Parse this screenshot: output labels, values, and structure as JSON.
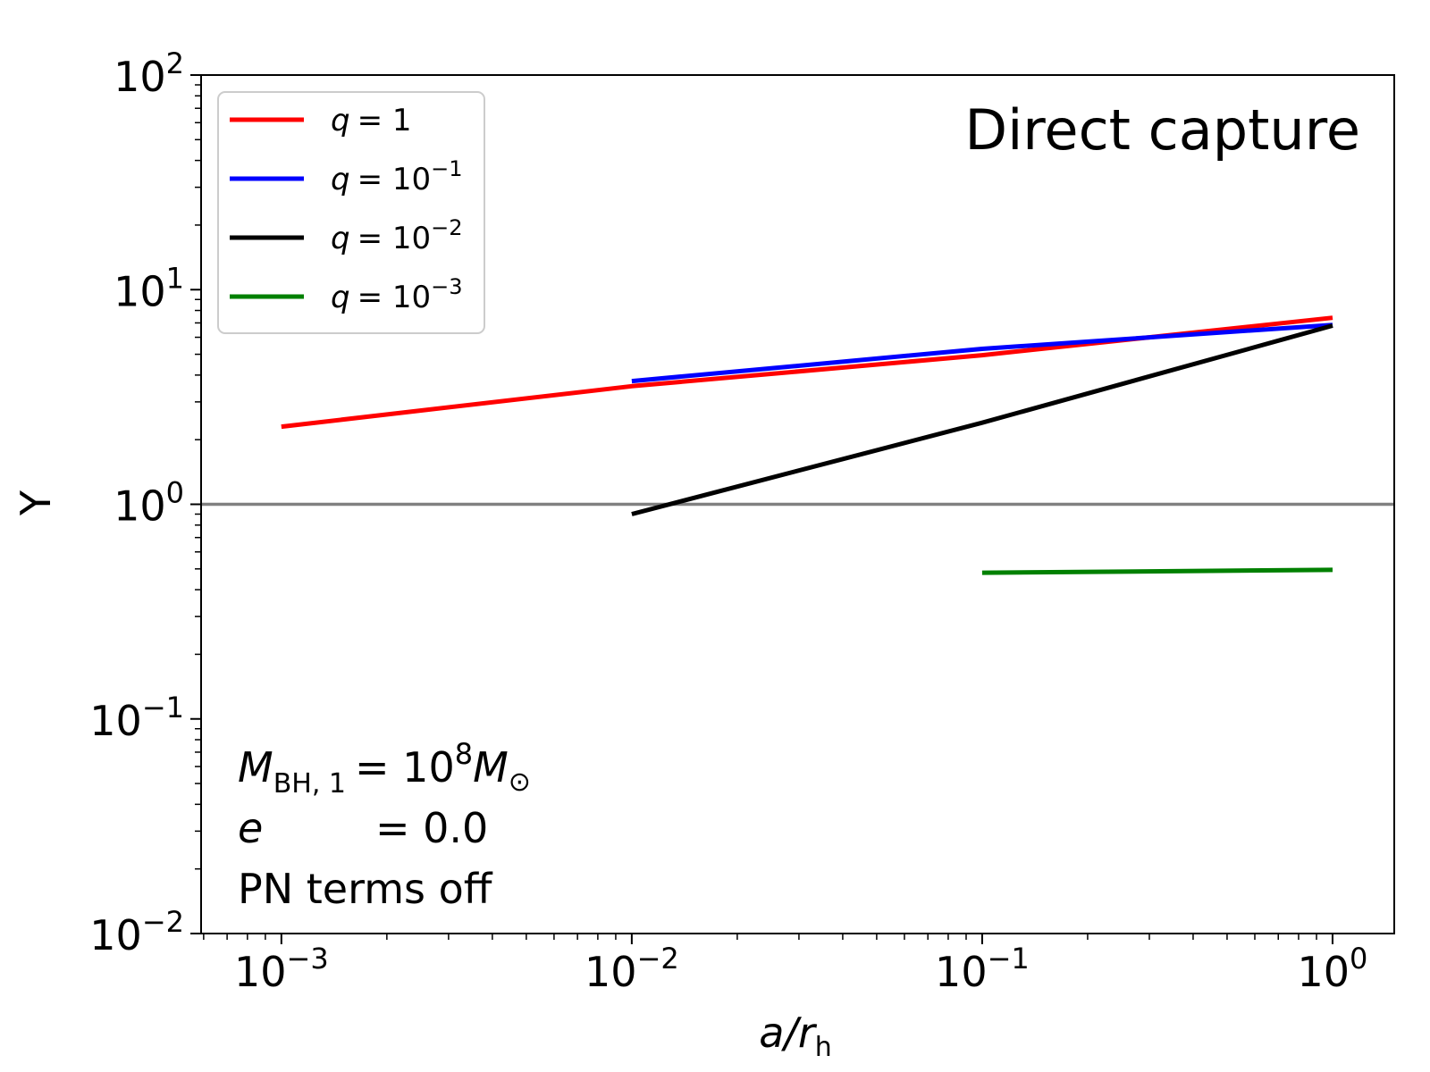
{
  "chart_data": {
    "type": "line",
    "title": "",
    "annotation": "Direct capture",
    "xlabel": {
      "main": "a/r",
      "sub": "h"
    },
    "ylabel": "Y",
    "xscale": "log",
    "yscale": "log",
    "xlim": [
      0.00059,
      1.5
    ],
    "ylim": [
      0.01,
      100
    ],
    "xticks": [
      {
        "value": 0.001,
        "base": "10",
        "exp": "−3"
      },
      {
        "value": 0.01,
        "base": "10",
        "exp": "−2"
      },
      {
        "value": 0.1,
        "base": "10",
        "exp": "−1"
      },
      {
        "value": 1,
        "base": "10",
        "exp": "0"
      }
    ],
    "yticks": [
      {
        "value": 0.01,
        "base": "10",
        "exp": "−2"
      },
      {
        "value": 0.1,
        "base": "10",
        "exp": "−1"
      },
      {
        "value": 1,
        "base": "10",
        "exp": "0"
      },
      {
        "value": 10,
        "base": "10",
        "exp": "1"
      },
      {
        "value": 100,
        "base": "10",
        "exp": "2"
      }
    ],
    "grid": false,
    "legend_position": "top-left",
    "reference_line": {
      "y": 1,
      "color": "#808080"
    },
    "series": [
      {
        "legend_q": "q",
        "legend_value": "= 1",
        "legend_exp": "",
        "color": "#ff0000",
        "x": [
          0.001,
          0.01,
          0.1,
          1
        ],
        "y": [
          2.3,
          3.55,
          4.95,
          7.4
        ]
      },
      {
        "legend_q": "q",
        "legend_value": "= 10",
        "legend_exp": "−1",
        "color": "#0000ff",
        "x": [
          0.01,
          0.1,
          1
        ],
        "y": [
          3.75,
          5.3,
          6.85
        ]
      },
      {
        "legend_q": "q",
        "legend_value": "= 10",
        "legend_exp": "−2",
        "color": "#000000",
        "x": [
          0.01,
          0.1,
          1
        ],
        "y": [
          0.9,
          2.4,
          6.8
        ]
      },
      {
        "legend_q": "q",
        "legend_value": "= 10",
        "legend_exp": "−3",
        "color": "#008000",
        "x": [
          0.1,
          1
        ],
        "y": [
          0.48,
          0.495
        ]
      }
    ],
    "info_lines": [
      {
        "var": "M",
        "sub": "BH, 1",
        "rest": "= 10",
        "sup": "8",
        "tail": "M",
        "tail_sub": "⊙"
      },
      {
        "var": "e",
        "rest": "= 0.0"
      },
      {
        "text": "PN terms off"
      }
    ]
  }
}
